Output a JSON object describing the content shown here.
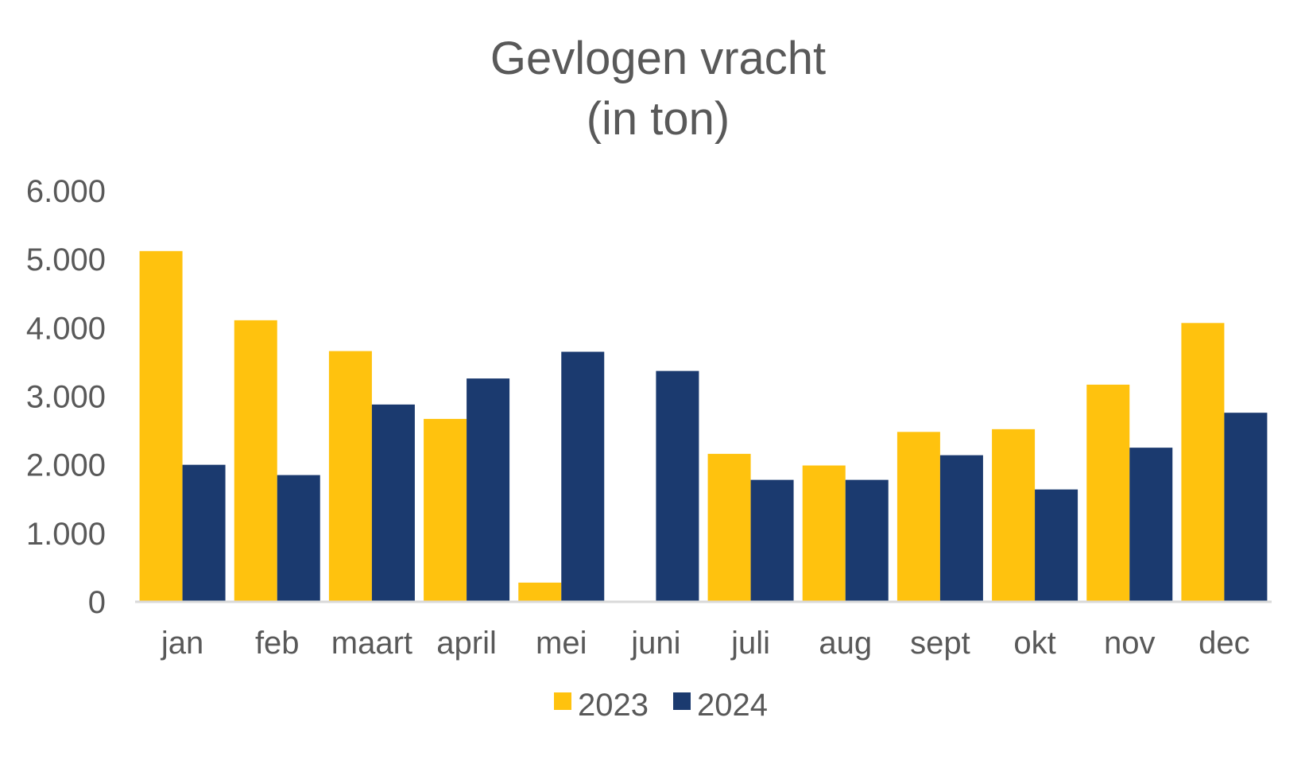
{
  "chart_data": {
    "type": "bar",
    "title": "Gevlogen vracht",
    "subtitle": "(in ton)",
    "xlabel": "",
    "ylabel": "",
    "categories": [
      "jan",
      "feb",
      "maart",
      "april",
      "mei",
      "juni",
      "juli",
      "aug",
      "sept",
      "okt",
      "nov",
      "dec"
    ],
    "series": [
      {
        "name": "2023",
        "color": "#FFC20E",
        "values": [
          5120,
          4110,
          3660,
          2670,
          280,
          0,
          2160,
          1990,
          2480,
          2520,
          3170,
          4070
        ]
      },
      {
        "name": "2024",
        "color": "#1B3A6F",
        "values": [
          2000,
          1850,
          2880,
          3260,
          3650,
          3370,
          1780,
          1780,
          2140,
          1640,
          2250,
          2760
        ]
      }
    ],
    "ylim": [
      0,
      6000
    ],
    "yticks": [
      0,
      1000,
      2000,
      3000,
      4000,
      5000,
      6000
    ],
    "ytick_labels": [
      "0",
      "1.000",
      "2.000",
      "3.000",
      "4.000",
      "5.000",
      "6.000"
    ],
    "grid": false,
    "legend": "bottom-center"
  }
}
